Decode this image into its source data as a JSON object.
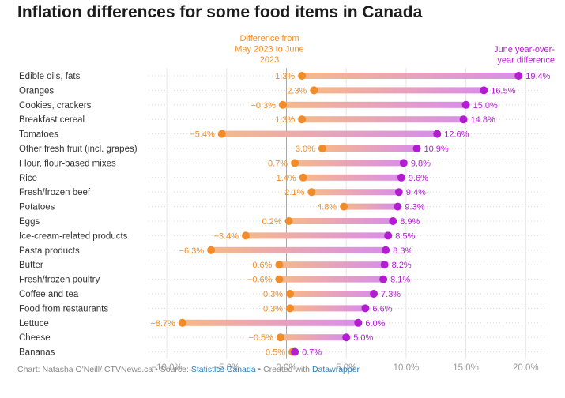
{
  "title": "Inflation differences for some food items in Canada",
  "chart_data": {
    "type": "dot-plot",
    "series": [
      {
        "name": "Difference from May 2023 to June 2023",
        "color": "#f28c28"
      },
      {
        "name": "June year-over-year difference",
        "color": "#b21dd1"
      }
    ],
    "rows": [
      {
        "label": "Edible oils, fats",
        "start": 1.3,
        "end": 19.4,
        "start_label": "1.3%",
        "end_label": "19.4%"
      },
      {
        "label": "Oranges",
        "start": 2.3,
        "end": 16.5,
        "start_label": "2.3%",
        "end_label": "16.5%"
      },
      {
        "label": "Cookies, crackers",
        "start": -0.3,
        "end": 15.0,
        "start_label": "−0.3%",
        "end_label": "15.0%"
      },
      {
        "label": "Breakfast cereal",
        "start": 1.3,
        "end": 14.8,
        "start_label": "1.3%",
        "end_label": "14.8%"
      },
      {
        "label": "Tomatoes",
        "start": -5.4,
        "end": 12.6,
        "start_label": "−5.4%",
        "end_label": "12.6%"
      },
      {
        "label": "Other fresh fruit (incl. grapes)",
        "start": 3.0,
        "end": 10.9,
        "start_label": "3.0%",
        "end_label": "10.9%"
      },
      {
        "label": "Flour, flour-based mixes",
        "start": 0.7,
        "end": 9.8,
        "start_label": "0.7%",
        "end_label": "9.8%"
      },
      {
        "label": "Rice",
        "start": 1.4,
        "end": 9.6,
        "start_label": "1.4%",
        "end_label": "9.6%"
      },
      {
        "label": "Fresh/frozen beef",
        "start": 2.1,
        "end": 9.4,
        "start_label": "2.1%",
        "end_label": "9.4%"
      },
      {
        "label": "Potatoes",
        "start": 4.8,
        "end": 9.3,
        "start_label": "4.8%",
        "end_label": "9.3%"
      },
      {
        "label": "Eggs",
        "start": 0.2,
        "end": 8.9,
        "start_label": "0.2%",
        "end_label": "8.9%"
      },
      {
        "label": "Ice-cream-related products",
        "start": -3.4,
        "end": 8.5,
        "start_label": "−3.4%",
        "end_label": "8.5%"
      },
      {
        "label": "Pasta products",
        "start": -6.3,
        "end": 8.3,
        "start_label": "−6.3%",
        "end_label": "8.3%"
      },
      {
        "label": "Butter",
        "start": -0.6,
        "end": 8.2,
        "start_label": "−0.6%",
        "end_label": "8.2%"
      },
      {
        "label": "Fresh/frozen poultry",
        "start": -0.6,
        "end": 8.1,
        "start_label": "−0.6%",
        "end_label": "8.1%"
      },
      {
        "label": "Coffee and tea",
        "start": 0.3,
        "end": 7.3,
        "start_label": "0.3%",
        "end_label": "7.3%"
      },
      {
        "label": "Food from restaurants",
        "start": 0.3,
        "end": 6.6,
        "start_label": "0.3%",
        "end_label": "6.6%"
      },
      {
        "label": "Lettuce",
        "start": -8.7,
        "end": 6.0,
        "start_label": "−8.7%",
        "end_label": "6.0%"
      },
      {
        "label": "Cheese",
        "start": -0.5,
        "end": 5.0,
        "start_label": "−0.5%",
        "end_label": "5.0%"
      },
      {
        "label": "Bananas",
        "start": 0.5,
        "end": 0.7,
        "start_label": "0.5%",
        "end_label": "0.7%"
      }
    ],
    "xlim": [
      -12,
      22
    ],
    "x_ticks": [
      -10,
      -5,
      0,
      5,
      10,
      15,
      20
    ],
    "x_tick_labels": [
      "−10.0%",
      "−5.0%",
      "0.0%",
      "5.0%",
      "10.0%",
      "15.0%",
      "20.0%"
    ],
    "annotations": [
      {
        "text": "Difference from May 2023 to June 2023",
        "lines": [
          "Difference from",
          "May 2023 to June",
          "2023"
        ],
        "series": 0
      },
      {
        "text": "June year-over-year difference",
        "lines": [
          "June year-over-",
          "year difference"
        ],
        "series": 1
      }
    ],
    "grid": true
  },
  "footer": {
    "prefix": "Chart: Natasha O'Neill/ CTVNews.ca • Source: ",
    "source": "Statistics Canada",
    "middle": " • Created with ",
    "tool": "Datawrapper"
  }
}
